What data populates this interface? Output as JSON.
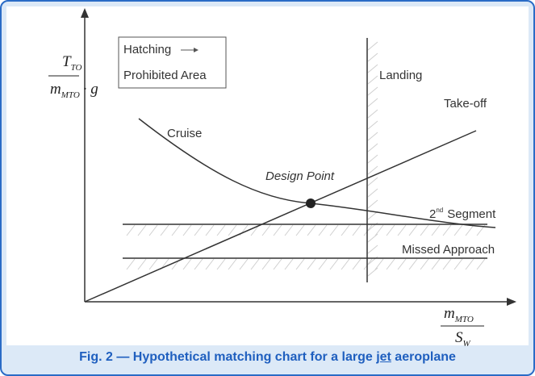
{
  "figure": {
    "y_axis_label": {
      "numerator": {
        "symbol": "T",
        "subscript": "TO"
      },
      "denominator": {
        "symbol": "m",
        "subscript": "MTO",
        "suffix": "· g"
      }
    },
    "x_axis_label": {
      "numerator": {
        "symbol": "m",
        "subscript": "MTO"
      },
      "denominator": {
        "symbol": "S",
        "subscript": "W"
      }
    },
    "legend": {
      "title": "Hatching",
      "note": "Prohibited Area"
    },
    "curves": {
      "cruise": "Cruise",
      "landing": "Landing",
      "takeoff": "Take-off",
      "second_segment": {
        "ordinal": "2",
        "superscript": "nd",
        "text": "Segment"
      },
      "missed_approach": "Missed Approach"
    },
    "design_point": "Design Point",
    "caption": {
      "before": "Fig. 2 — Hypothetical matching chart for a large ",
      "emphasis": "jet",
      "after": " aeroplane"
    }
  }
}
